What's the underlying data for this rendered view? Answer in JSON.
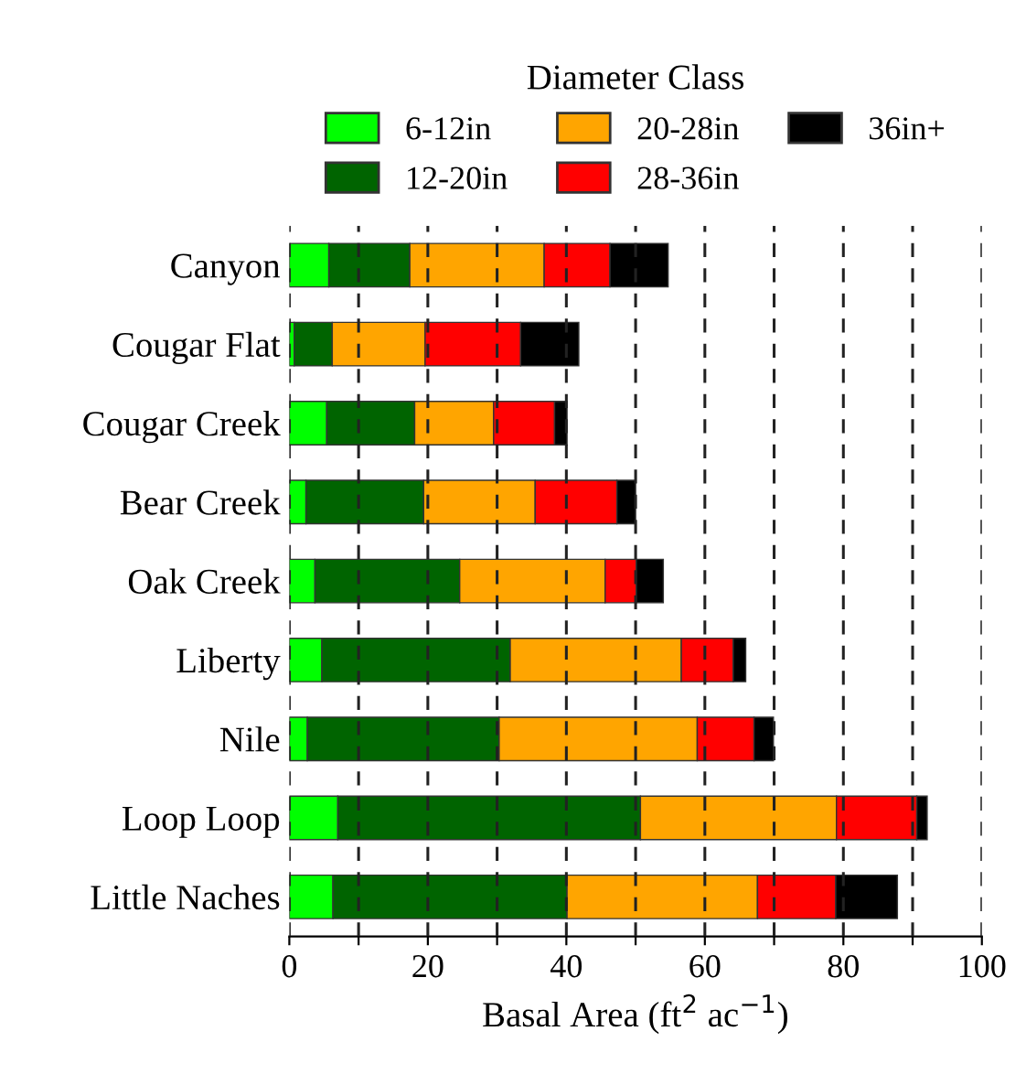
{
  "chart_data": {
    "type": "bar",
    "orientation": "horizontal",
    "stacked": true,
    "legend_title": "Diameter Class",
    "xlabel": "Basal Area (ft$^{2}$ ac$^{−1}$)",
    "categories": [
      "Canyon",
      "Cougar Flat",
      "Cougar Creek",
      "Bear Creek",
      "Oak Creek",
      "Liberty",
      "Nile",
      "Loop Loop",
      "Little Naches"
    ],
    "series": [
      {
        "name": "6-12in",
        "color": "#00ff00",
        "values": [
          5.7,
          0.7,
          5.4,
          2.4,
          3.7,
          4.7,
          2.6,
          7.0,
          6.3
        ]
      },
      {
        "name": "12-20in",
        "color": "#006400",
        "values": [
          11.7,
          5.5,
          12.7,
          17.0,
          20.9,
          27.2,
          27.7,
          43.7,
          33.8
        ]
      },
      {
        "name": "20-28in",
        "color": "#ffa500",
        "values": [
          19.4,
          13.4,
          11.4,
          16.1,
          21.0,
          24.7,
          28.6,
          28.3,
          27.5
        ]
      },
      {
        "name": "28-36in",
        "color": "#ff0000",
        "values": [
          9.5,
          13.8,
          8.8,
          11.8,
          4.5,
          7.5,
          8.2,
          11.6,
          11.3
        ]
      },
      {
        "name": "36in+",
        "color": "#000000",
        "values": [
          8.4,
          8.4,
          1.8,
          2.7,
          3.9,
          1.8,
          2.8,
          1.5,
          8.9
        ]
      }
    ],
    "xlim": [
      0,
      100
    ],
    "xticks": [
      0,
      {
        "value": 10,
        "label": null
      },
      20,
      {
        "value": 30,
        "label": null
      },
      40,
      {
        "value": 50,
        "label": null
      },
      60,
      {
        "value": 70,
        "label": null
      },
      80,
      {
        "value": 90,
        "label": null
      },
      100
    ],
    "grid": "x",
    "legend": "top"
  }
}
